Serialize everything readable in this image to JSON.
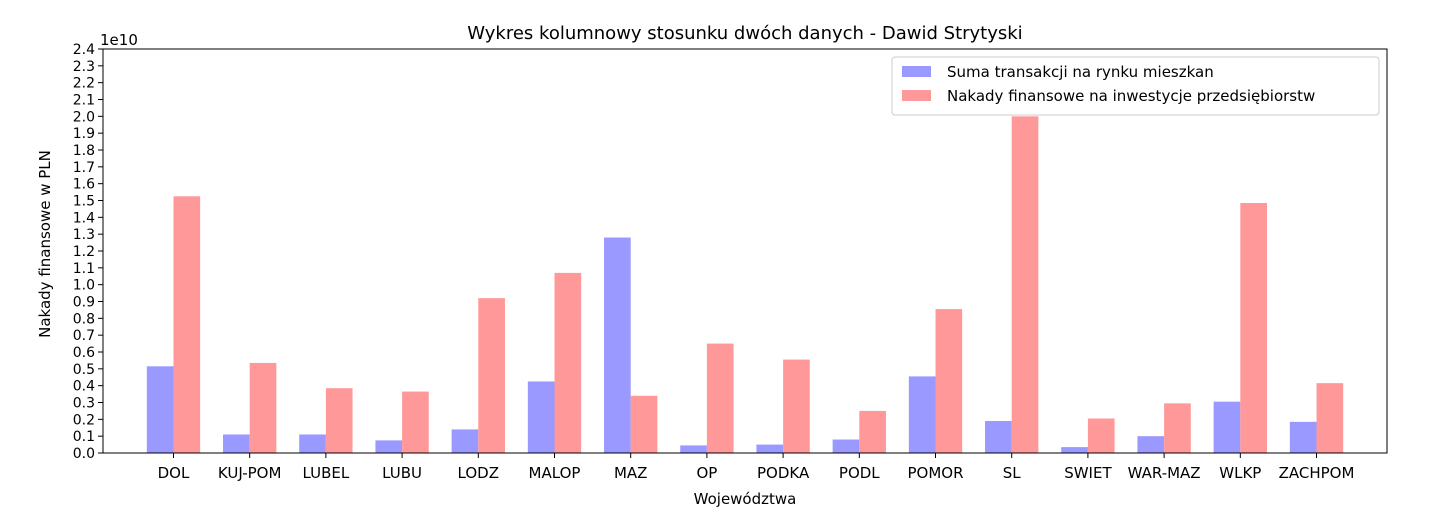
{
  "chart_data": {
    "type": "bar",
    "title": "Wykres kolumnowy stosunku dwóch danych - Dawid Strytyski",
    "xlabel": "Województwa",
    "ylabel": "Nakady finansowe w PLN",
    "y_offset_label": "1e10",
    "y_scale": 10000000000,
    "ylim": [
      0,
      2.4
    ],
    "yticks": [
      "0.0",
      "0.1",
      "0.2",
      "0.3",
      "0.4",
      "0.5",
      "0.6",
      "0.7",
      "0.8",
      "0.9",
      "1.0",
      "1.1",
      "1.2",
      "1.3",
      "1.4",
      "1.5",
      "1.6",
      "1.7",
      "1.8",
      "1.9",
      "2.0",
      "2.1",
      "2.2",
      "2.3",
      "2.4"
    ],
    "grid": false,
    "legend_position": "top-right",
    "categories": [
      "DOL",
      "KUJ-POM",
      "LUBEL",
      "LUBU",
      "LODZ",
      "MALOP",
      "MAZ",
      "OP",
      "PODKA",
      "PODL",
      "POMOR",
      "SL",
      "SWIET",
      "WAR-MAZ",
      "WLKP",
      "ZACHPOM"
    ],
    "series": [
      {
        "name": "Suma transakcji na rynku mieszkan",
        "color": "#9999ff",
        "values": [
          0.515,
          0.11,
          0.11,
          0.075,
          0.14,
          0.425,
          1.28,
          0.045,
          0.05,
          0.08,
          0.455,
          0.19,
          0.035,
          0.1,
          0.305,
          0.185
        ]
      },
      {
        "name": "Nakady finansowe na inwestycje przedsiębiorstw",
        "color": "#ff9999",
        "values": [
          1.525,
          0.535,
          0.385,
          0.365,
          0.92,
          1.07,
          0.34,
          0.65,
          0.555,
          0.25,
          0.855,
          2.0,
          0.205,
          0.295,
          1.485,
          0.415
        ]
      }
    ]
  }
}
